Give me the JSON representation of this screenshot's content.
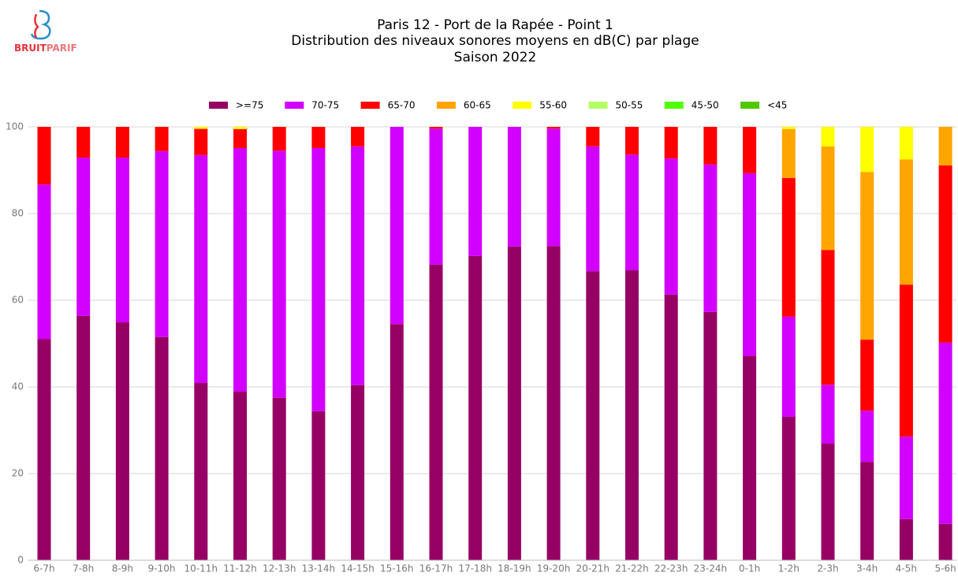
{
  "logo": {
    "part1": "BRUIT",
    "part2": "PARIF"
  },
  "chart_data": {
    "type": "stacked_bar",
    "title": [
      "Paris 12 - Port de la Rapée - Point 1",
      "Distribution des niveaux sonores moyens en dB(C) par plage",
      "Saison 2022"
    ],
    "categories": [
      "6-7h",
      "7-8h",
      "8-9h",
      "9-10h",
      "10-11h",
      "11-12h",
      "12-13h",
      "13-14h",
      "14-15h",
      "15-16h",
      "16-17h",
      "17-18h",
      "18-19h",
      "19-20h",
      "20-21h",
      "21-22h",
      "22-23h",
      "23-24h",
      "0-1h",
      "1-2h",
      "2-3h",
      "3-4h",
      "4-5h",
      "5-6h"
    ],
    "series": [
      {
        "name": ">=75",
        "color": "#960064",
        "values": [
          51,
          56.4,
          54.9,
          51.5,
          40.9,
          38.9,
          37.5,
          34.4,
          40.4,
          54.5,
          68.2,
          70.2,
          72.4,
          72.5,
          66.7,
          66.9,
          61.3,
          57.3,
          47.1,
          33.1,
          26.9,
          22.7,
          9.5,
          8.4
        ]
      },
      {
        "name": "70-75",
        "color": "#d200ff",
        "values": [
          35.7,
          36.5,
          38,
          42.9,
          52.6,
          56.2,
          57,
          60.7,
          55.1,
          45.5,
          31.4,
          29.8,
          27.6,
          27.1,
          28.8,
          26.7,
          31.4,
          34,
          42.2,
          23.1,
          13.6,
          11.8,
          19,
          41.8
        ]
      },
      {
        "name": "65-70",
        "color": "#ff0000",
        "values": [
          13.3,
          7.1,
          7.1,
          5.6,
          6,
          4.4,
          5.5,
          4.9,
          4.5,
          0,
          0.4,
          0,
          0,
          0.4,
          4.5,
          6.4,
          7.3,
          8.7,
          10.7,
          32,
          31.1,
          16.4,
          35.1,
          40.9
        ]
      },
      {
        "name": "60-65",
        "color": "#ffa500",
        "values": [
          0,
          0,
          0,
          0,
          0.2,
          0,
          0,
          0,
          0,
          0,
          0,
          0,
          0,
          0,
          0,
          0,
          0,
          0,
          0,
          11.3,
          23.9,
          38.7,
          28.9,
          8.9
        ]
      },
      {
        "name": "55-60",
        "color": "#ffff00",
        "values": [
          0,
          0,
          0,
          0,
          0.3,
          0.5,
          0,
          0,
          0,
          0,
          0,
          0,
          0,
          0,
          0,
          0,
          0,
          0,
          0,
          0.5,
          4.5,
          10.4,
          7.5,
          0
        ]
      },
      {
        "name": "50-55",
        "color": "#b4ff64",
        "values": [
          0,
          0,
          0,
          0,
          0,
          0,
          0,
          0,
          0,
          0,
          0,
          0,
          0,
          0,
          0,
          0,
          0,
          0,
          0,
          0,
          0,
          0,
          0,
          0
        ]
      },
      {
        "name": "45-50",
        "color": "#50ff00",
        "values": [
          0,
          0,
          0,
          0,
          0,
          0,
          0,
          0,
          0,
          0,
          0,
          0,
          0,
          0,
          0,
          0,
          0,
          0,
          0,
          0,
          0,
          0,
          0,
          0
        ]
      },
      {
        "name": "<45",
        "color": "#50c800",
        "values": [
          0,
          0,
          0,
          0,
          0,
          0,
          0,
          0,
          0,
          0,
          0,
          0,
          0,
          0,
          0,
          0,
          0,
          0,
          0,
          0,
          0,
          0,
          0,
          0
        ]
      }
    ],
    "ylim": [
      0,
      100
    ],
    "yticks": [
      0,
      20,
      40,
      60,
      80,
      100
    ],
    "grid": true,
    "legend": "top"
  }
}
